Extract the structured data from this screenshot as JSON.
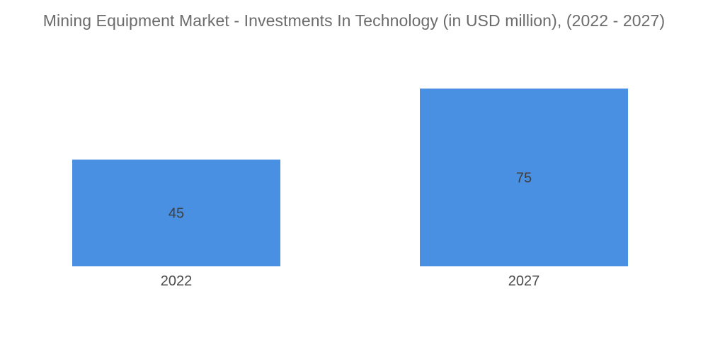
{
  "chart_data": {
    "type": "bar",
    "title": "Mining Equipment Market - Investments In Technology (in USD million),  (2022 - 2027)",
    "xlabel": "",
    "ylabel": "",
    "categories": [
      "2022",
      "2027"
    ],
    "values": [
      45,
      75
    ],
    "ylim": [
      0,
      75
    ],
    "grid": false,
    "legend": "none",
    "colors": {
      "bar": "#4a90e2",
      "title": "#6b6b6b",
      "label": "#3d3d3d"
    }
  }
}
